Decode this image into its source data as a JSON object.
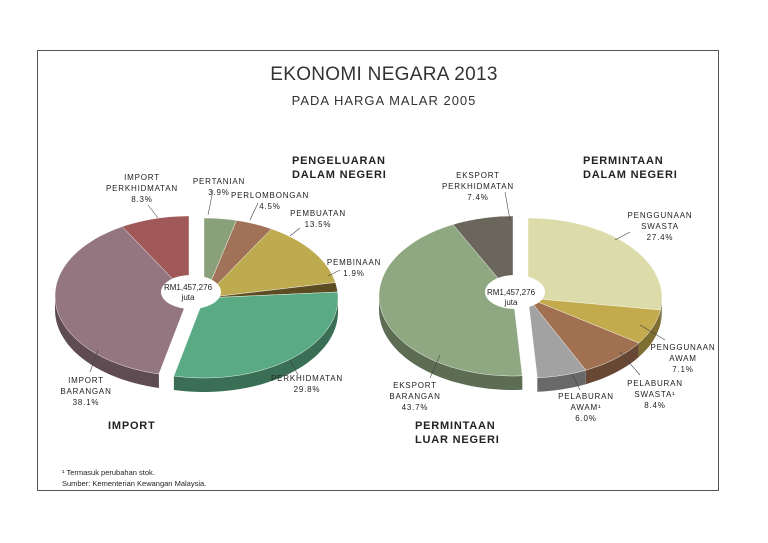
{
  "chart_data": {
    "type": "pie",
    "title": "EKONOMI NEGARA 2013",
    "subtitle": "PADA HARGA MALAR 2005",
    "pies": [
      {
        "center_label": [
          "RM1,457,276",
          "juta"
        ],
        "groups": [
          "PENGELUARAN DALAM NEGERI",
          "IMPORT"
        ],
        "slices": [
          {
            "name": "PERTANIAN",
            "value": 3.9,
            "pct": "3.9%",
            "group": 0,
            "color": "#8aa07a"
          },
          {
            "name": "PERLOMBONGAN",
            "value": 4.5,
            "pct": "4.5%",
            "group": 0,
            "color": "#a07358"
          },
          {
            "name": "PEMBUATAN",
            "value": 13.5,
            "pct": "13.5%",
            "group": 0,
            "color": "#bfab4f"
          },
          {
            "name": "PEMBINAAN",
            "value": 1.9,
            "pct": "1.9%",
            "group": 0,
            "color": "#5c4c22"
          },
          {
            "name": "PERKHIDMATAN",
            "value": 29.8,
            "pct": "29.8%",
            "group": 0,
            "color": "#5aab84"
          },
          {
            "name": "IMPORT BARANGAN",
            "value": 38.1,
            "pct": "38.1%",
            "group": 1,
            "color": "#937680"
          },
          {
            "name": "IMPORT PERKHIDMATAN",
            "value": 8.3,
            "pct": "8.3%",
            "group": 1,
            "color": "#a05858"
          }
        ]
      },
      {
        "center_label": [
          "RM1,457,276",
          "juta"
        ],
        "groups": [
          "PERMINTAAN DALAM NEGERI",
          "PERMINTAAN LUAR NEGERI"
        ],
        "slices": [
          {
            "name": "PENGGUNAAN SWASTA",
            "value": 27.4,
            "pct": "27.4%",
            "group": 0,
            "color": "#dcdcaa"
          },
          {
            "name": "PENGGUNAAN AWAM",
            "value": 7.1,
            "pct": "7.1%",
            "group": 0,
            "color": "#c3aa4c"
          },
          {
            "name": "PELABURAN SWASTA¹",
            "value": 8.4,
            "pct": "8.4%",
            "group": 0,
            "color": "#a07050"
          },
          {
            "name": "PELABURAN AWAM¹",
            "value": 6.0,
            "pct": "6.0%",
            "group": 0,
            "color": "#a2a2a2"
          },
          {
            "name": "EKSPORT BARANGAN",
            "value": 43.7,
            "pct": "43.7%",
            "group": 1,
            "color": "#8fa882"
          },
          {
            "name": "EKSPORT PERKHIDMATAN",
            "value": 7.4,
            "pct": "7.4%",
            "group": 1,
            "color": "#6b665c"
          }
        ]
      }
    ]
  },
  "labels": {
    "l": {
      "pertanian": [
        "PERTANIAN",
        "3.9%"
      ],
      "perlombongan": [
        "PERLOMBONGAN",
        "4.5%"
      ],
      "pembuatan": [
        "PEMBUATAN",
        "13.5%"
      ],
      "pembinaan": [
        "PEMBINAAN",
        "1.9%"
      ],
      "perkhidmatan": [
        "PERKHIDMATAN",
        "29.8%"
      ],
      "import_barangan": [
        "IMPORT",
        "BARANGAN",
        "38.1%"
      ],
      "import_perkhidmatan": [
        "IMPORT",
        "PERKHIDMATAN",
        "8.3%"
      ],
      "group_a": [
        "PENGELUARAN",
        "DALAM NEGERI"
      ],
      "group_b": "IMPORT"
    },
    "r": {
      "penggunaan_swasta": [
        "PENGGUNAAN",
        "SWASTA",
        "27.4%"
      ],
      "penggunaan_awam": [
        "PENGGUNAAN",
        "AWAM",
        "7.1%"
      ],
      "pelaburan_swasta": [
        "PELABURAN",
        "SWASTA¹",
        "8.4%"
      ],
      "pelaburan_awam": [
        "PELABURAN",
        "AWAM¹",
        "6.0%"
      ],
      "eksport_barangan": [
        "EKSPORT",
        "BARANGAN",
        "43.7%"
      ],
      "eksport_perkhidmatan": [
        "EKSPORT",
        "PERKHIDMATAN",
        "7.4%"
      ],
      "group_a": [
        "PERMINTAAN",
        "DALAM NEGERI"
      ],
      "group_b": [
        "PERMINTAAN",
        "LUAR NEGERI"
      ]
    }
  },
  "footnotes": [
    "¹ Termasuk perubahan stok.",
    "Sumber: Kementerian Kewangan Malaysia."
  ]
}
